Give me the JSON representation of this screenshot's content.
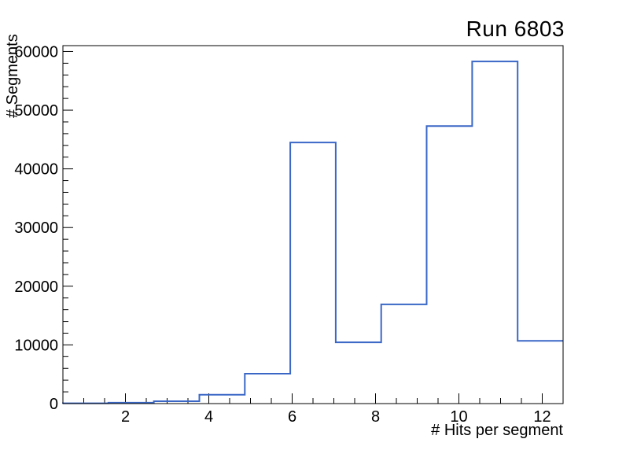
{
  "window": {
    "background_color": "#ffffff",
    "frame_border_color": "#000000"
  },
  "chart_data": {
    "type": "bar",
    "style": "root-step-histogram-outline",
    "title": "Run 6803",
    "xlabel": "# Hits per segment",
    "ylabel": "# Segments",
    "xlim": [
      0.5,
      12.5
    ],
    "ylim": [
      0,
      61000
    ],
    "x_major_ticks": [
      2,
      4,
      6,
      8,
      10,
      12
    ],
    "x_minor_tick_step": 0.5,
    "y_major_ticks": [
      0,
      10000,
      20000,
      30000,
      40000,
      50000,
      60000
    ],
    "y_minor_tick_step": 2000,
    "bin_edges": [
      0.5,
      1.5909,
      2.6818,
      3.7727,
      4.8636,
      5.9545,
      7.0455,
      8.1364,
      9.2273,
      10.3182,
      11.4091,
      12.5
    ],
    "values": [
      50,
      150,
      400,
      1500,
      5100,
      44500,
      10450,
      16900,
      47300,
      58300,
      10700
    ],
    "line_color": "#3a67c6",
    "line_width": 2,
    "grid": false,
    "legend": "none",
    "tick_direction": "inside"
  }
}
